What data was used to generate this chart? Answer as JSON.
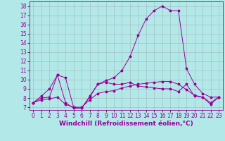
{
  "xlabel": "Windchill (Refroidissement éolien,°C)",
  "background_color": "#b2e8e8",
  "line_color": "#990099",
  "xlim": [
    -0.5,
    23.5
  ],
  "ylim": [
    6.7,
    18.5
  ],
  "xticks": [
    0,
    1,
    2,
    3,
    4,
    5,
    6,
    7,
    8,
    9,
    10,
    11,
    12,
    13,
    14,
    15,
    16,
    17,
    18,
    19,
    20,
    21,
    22,
    23
  ],
  "yticks": [
    7,
    8,
    9,
    10,
    11,
    12,
    13,
    14,
    15,
    16,
    17,
    18
  ],
  "line1_x": [
    0,
    1,
    2,
    3,
    4,
    5,
    6,
    7,
    8,
    9,
    10,
    11,
    12,
    13,
    14,
    15,
    16,
    17,
    18,
    19,
    20,
    21,
    22,
    23
  ],
  "line1_y": [
    7.5,
    8.0,
    8.1,
    10.5,
    7.5,
    6.9,
    6.9,
    8.1,
    9.5,
    9.7,
    9.5,
    9.5,
    9.7,
    9.3,
    9.2,
    9.1,
    9.0,
    9.0,
    8.7,
    9.5,
    8.2,
    8.1,
    7.3,
    8.1
  ],
  "line2_x": [
    0,
    1,
    2,
    3,
    4,
    5,
    6,
    7,
    8,
    9,
    10,
    11,
    12,
    13,
    14,
    15,
    16,
    17,
    18,
    19,
    20,
    21,
    22,
    23
  ],
  "line2_y": [
    7.5,
    7.8,
    7.9,
    8.1,
    7.3,
    7.0,
    7.0,
    7.8,
    8.5,
    8.7,
    8.8,
    9.1,
    9.3,
    9.5,
    9.6,
    9.7,
    9.8,
    9.8,
    9.5,
    8.9,
    8.3,
    8.1,
    7.5,
    8.1
  ],
  "line3_x": [
    0,
    1,
    2,
    3,
    4,
    5,
    6,
    7,
    8,
    9,
    10,
    11,
    12,
    13,
    14,
    15,
    16,
    17,
    18,
    19,
    20,
    21,
    22,
    23
  ],
  "line3_y": [
    7.5,
    8.2,
    9.0,
    10.5,
    10.2,
    7.0,
    6.9,
    8.2,
    9.5,
    9.9,
    10.2,
    11.0,
    12.5,
    14.8,
    16.6,
    17.5,
    18.0,
    17.5,
    17.5,
    11.2,
    9.5,
    8.5,
    8.1,
    8.1
  ],
  "grid_color": "#999999",
  "tick_fontsize": 5.5,
  "xlabel_fontsize": 6.5
}
